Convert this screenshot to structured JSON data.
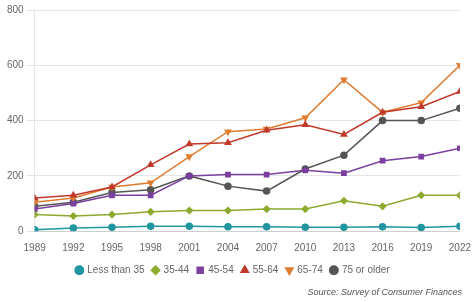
{
  "chart_data": {
    "type": "line",
    "x": [
      1989,
      1992,
      1995,
      1998,
      2001,
      2004,
      2007,
      2010,
      2013,
      2016,
      2019,
      2022
    ],
    "series": [
      {
        "name": "Less than 35",
        "color": "#2196a0",
        "marker": "circle",
        "values": [
          5,
          12,
          14,
          18,
          18,
          16,
          16,
          14,
          14,
          16,
          13,
          18
        ]
      },
      {
        "name": "35-44",
        "color": "#8caa2e",
        "marker": "diamond",
        "values": [
          60,
          55,
          60,
          70,
          75,
          75,
          80,
          80,
          110,
          90,
          130,
          130
        ]
      },
      {
        "name": "45-54",
        "color": "#7b3fa0",
        "marker": "square",
        "values": [
          80,
          100,
          130,
          130,
          200,
          205,
          205,
          220,
          210,
          255,
          270,
          300
        ]
      },
      {
        "name": "55-64",
        "color": "#c0392b",
        "marker": "triangle",
        "values": [
          120,
          130,
          160,
          240,
          315,
          320,
          365,
          385,
          350,
          430,
          450,
          505
        ]
      },
      {
        "name": "65-74",
        "color": "#e07b30",
        "marker": "triangle_down",
        "values": [
          105,
          120,
          160,
          175,
          270,
          360,
          370,
          410,
          548,
          430,
          465,
          600
        ]
      },
      {
        "name": "75 or older",
        "color": "#555555",
        "marker": "circle",
        "values": [
          90,
          105,
          140,
          150,
          200,
          163,
          145,
          225,
          275,
          400,
          400,
          445
        ]
      }
    ],
    "xlim": [
      1989,
      2022
    ],
    "xticks": [
      1989,
      1992,
      1995,
      1998,
      2001,
      2004,
      2007,
      2010,
      2013,
      2016,
      2019,
      2022
    ],
    "ylim": [
      0,
      800
    ],
    "yticks": [
      0,
      200,
      400,
      600,
      800
    ],
    "grid": "y",
    "legend": "bottom",
    "annotation": "Source: Survey of Consumer Finances"
  }
}
